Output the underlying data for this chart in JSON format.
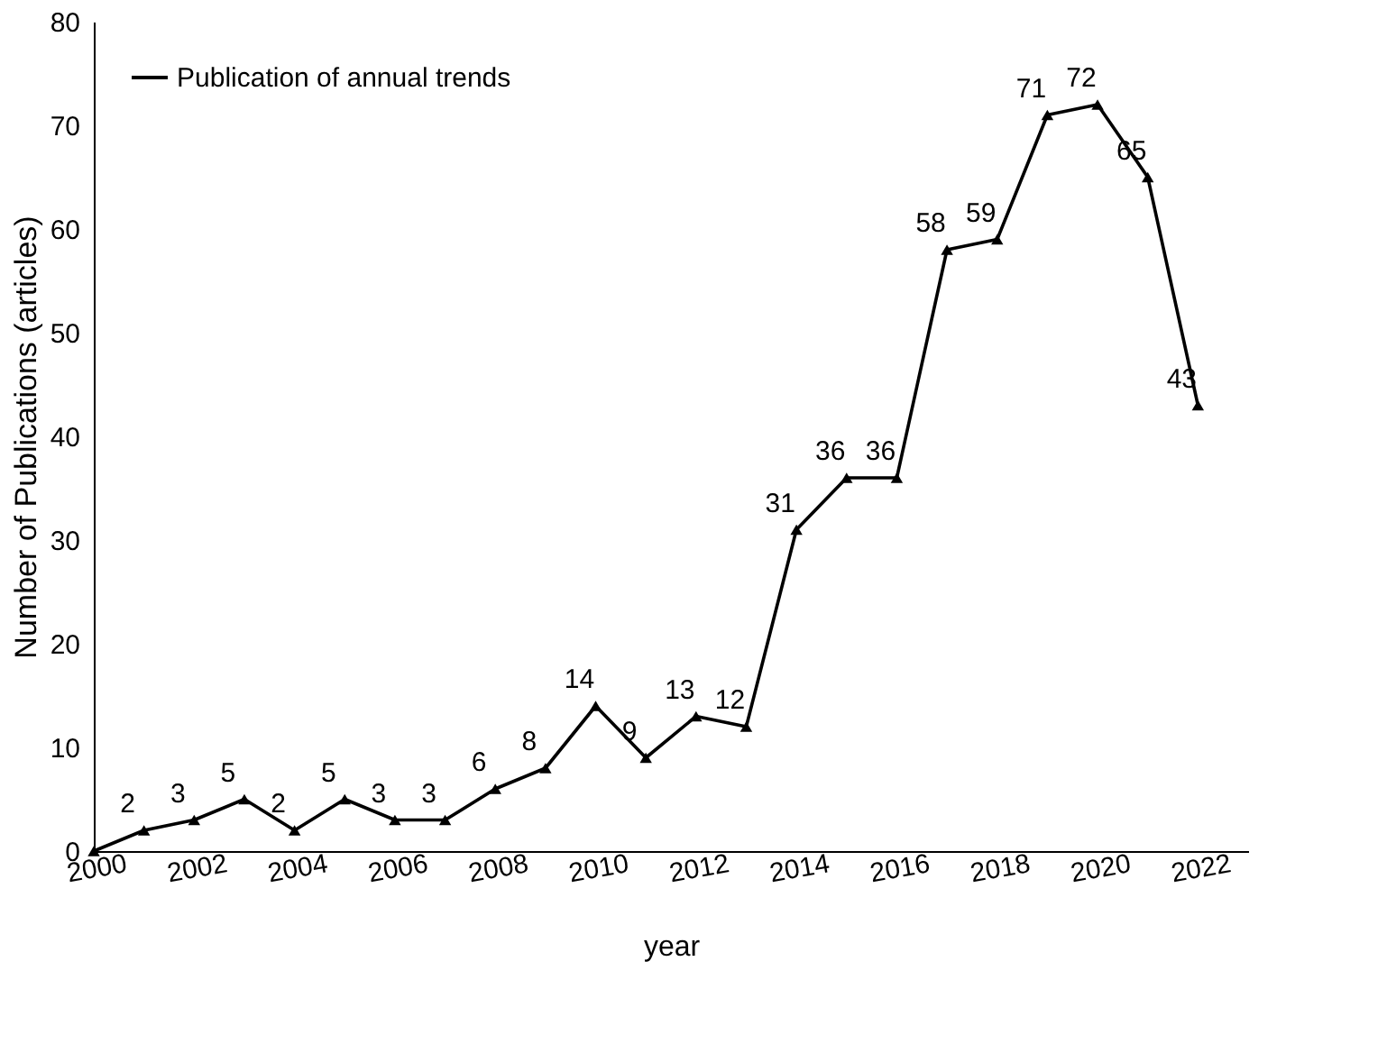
{
  "chart_data": {
    "type": "line",
    "xlabel": "year",
    "ylabel": "Number of Publications (articles)",
    "x": [
      2000,
      2001,
      2002,
      2003,
      2004,
      2005,
      2006,
      2007,
      2008,
      2009,
      2010,
      2011,
      2012,
      2013,
      2014,
      2015,
      2016,
      2017,
      2018,
      2019,
      2020,
      2021,
      2022
    ],
    "series": [
      {
        "name": "Publication of annual trends",
        "color": "#000000",
        "values": [
          0,
          2,
          3,
          5,
          2,
          5,
          3,
          3,
          6,
          8,
          14,
          9,
          13,
          12,
          31,
          36,
          36,
          58,
          59,
          71,
          72,
          65,
          43
        ],
        "value_labels": [
          null,
          "2",
          "3",
          "5",
          "2",
          "5",
          "3",
          "3",
          "6",
          "8",
          "14",
          "9",
          "13",
          "12",
          "31",
          "36",
          "36",
          "58",
          "59",
          "71",
          "72",
          "65",
          "43"
        ]
      }
    ],
    "xlim": [
      2000,
      2023
    ],
    "xticks": [
      2000,
      2002,
      2004,
      2006,
      2008,
      2010,
      2012,
      2014,
      2016,
      2018,
      2020,
      2022
    ],
    "ylim": [
      0,
      80
    ],
    "yticks": [
      0,
      10,
      20,
      30,
      40,
      50,
      60,
      70,
      80
    ],
    "grid": false,
    "legend": "top left",
    "marker": "triangle",
    "line_style": "solid"
  }
}
